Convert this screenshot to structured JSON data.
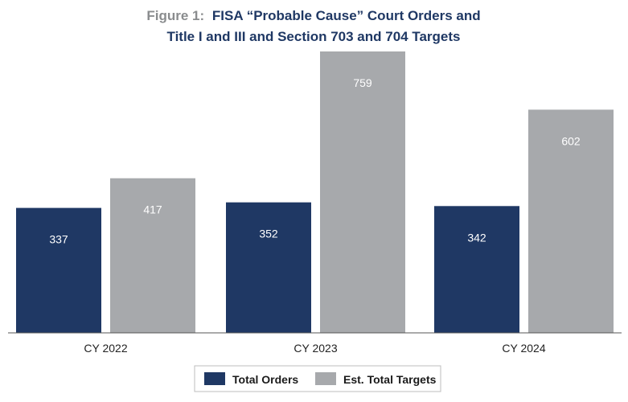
{
  "chart_data": {
    "type": "bar",
    "title_prefix": "Figure 1:",
    "title_line1": "FISA “Probable Cause” Court Orders and",
    "title_line2": "Title I and III and Section 703 and 704 Targets",
    "categories": [
      "CY 2022",
      "CY 2023",
      "CY 2024"
    ],
    "series": [
      {
        "name": "Total Orders",
        "values": [
          337,
          352,
          342
        ],
        "color": "#1f3864"
      },
      {
        "name": "Est. Total Targets",
        "values": [
          417,
          759,
          602
        ],
        "color": "#a7a9ac"
      }
    ],
    "ylim": [
      0,
      759
    ],
    "grid": false,
    "legend": "bottom-center",
    "colors": {
      "title_prefix": "#8a8c8e",
      "title": "#1f3864",
      "baseline": "#555555"
    }
  }
}
